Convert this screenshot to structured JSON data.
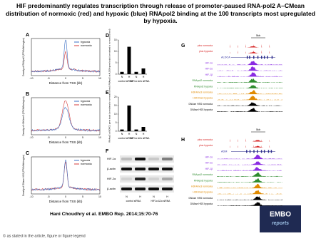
{
  "title": "HIF predominantly regulates transcription through release of promoter-paused RNA-pol2 A–CMean distribution of normoxic (red) and hypoxic (blue) RNApol2 binding at the 100 transcripts most upregulated by hypoxia.",
  "profile_panels": [
    {
      "letter": "A",
      "y_label": "Density of RNApol2 (FPKM/kb/region)",
      "x_label": "Distance from TSS (kb)",
      "x_ticks": [
        "-10",
        "-5",
        "0",
        "5",
        "10"
      ],
      "legend": [
        "hypoxia",
        "normoxia"
      ]
    },
    {
      "letter": "B",
      "y_label": "Density of H3K4me3 (FPKM/kb/region)",
      "x_label": "Distance from TSS (kb)",
      "x_ticks": [
        "-10",
        "-5",
        "0",
        "5",
        "10"
      ],
      "legend": [
        "hypoxia",
        "normoxia"
      ]
    },
    {
      "letter": "C",
      "y_label": "Density of DNase HSS (FPKM/kb/region)",
      "x_label": "Distance from TSS (kb)",
      "x_ticks": [
        "-10",
        "-5",
        "0",
        "5",
        "10"
      ],
      "legend": [
        "hypoxia",
        "normoxia"
      ]
    }
  ],
  "legend_colors": [
    "#3b6fc4",
    "#d43b3b"
  ],
  "bar_panels": [
    {
      "letter": "D",
      "y_label": "RNApol2 at ALDOA gene body (normalised to normoxic control)",
      "categories": [
        "N",
        "H",
        "N",
        "H"
      ],
      "groups": [
        "control siRNA",
        "HIF1α &2α siRNA"
      ],
      "values": [
        1,
        12,
        1,
        2.5
      ],
      "ylim": [
        0,
        15
      ],
      "yticks": [
        0,
        5,
        10,
        15
      ],
      "color": "#000000"
    },
    {
      "letter": "E",
      "y_label": "RNApol2 at NDRG1 gene body (normalised to normoxic control)",
      "categories": [
        "N",
        "H",
        "N",
        "H"
      ],
      "groups": [
        "control siRNA",
        "HIF1α &2α siRNA"
      ],
      "values": [
        1,
        15,
        1,
        2.5
      ],
      "ylim": [
        0,
        20
      ],
      "yticks": [
        0,
        5,
        10,
        15,
        20
      ],
      "color": "#000000"
    }
  ],
  "blot_panel": {
    "letter": "F",
    "rows": [
      "HIF-1α",
      "β-actin",
      "HIF-2α",
      "β-actin"
    ],
    "lanes": [
      "N",
      "H",
      "N",
      "H"
    ],
    "groups": [
      "control siRNA",
      "HIF1α &2α siRNA"
    ]
  },
  "track_panels": [
    {
      "letter": "G",
      "scale": "5kb",
      "gene": "ALDOA",
      "tracks": [
        {
          "label": "plus normoxia",
          "color": "#d62020"
        },
        {
          "label": "plus hypoxia",
          "color": "#d62020"
        },
        {
          "label": "HIF-1α",
          "color": "#8a2be2"
        },
        {
          "label": "HIF-2α",
          "color": "#8a2be2"
        },
        {
          "label": "HIF-1β",
          "color": "#8a2be2"
        },
        {
          "label": "RNApol2 normoxia",
          "color": "#2e8b2e"
        },
        {
          "label": "RNApol2 hypoxia",
          "color": "#2e8b2e"
        },
        {
          "label": "H3K4me3 normoxia",
          "color": "#e08a00"
        },
        {
          "label": "H3K4me3 hypoxia",
          "color": "#e08a00"
        },
        {
          "label": "DNAse HSS normoxia",
          "color": "#000000"
        },
        {
          "label": "DNAse HSS hypoxia",
          "color": "#000000"
        }
      ]
    },
    {
      "letter": "H",
      "scale": "5kb",
      "gene": "ADM",
      "tracks": [
        {
          "label": "plus normoxia",
          "color": "#d62020"
        },
        {
          "label": "plus hypoxia",
          "color": "#d62020"
        },
        {
          "label": "HIF-1α",
          "color": "#8a2be2"
        },
        {
          "label": "HIF-2α",
          "color": "#8a2be2"
        },
        {
          "label": "HIF-1β",
          "color": "#8a2be2"
        },
        {
          "label": "RNApol2 normoxia",
          "color": "#2e8b2e"
        },
        {
          "label": "RNApol2 hypoxia",
          "color": "#2e8b2e"
        },
        {
          "label": "H3K4me3 normoxia",
          "color": "#e08a00"
        },
        {
          "label": "H3K4me3 hypoxia",
          "color": "#e08a00"
        },
        {
          "label": "DNAse HSS normoxia",
          "color": "#000000"
        },
        {
          "label": "DNAse HSS hypoxia",
          "color": "#000000"
        }
      ]
    }
  ],
  "citation": "Hani Choudhry et al. EMBO Rep. 2014;15:70-76",
  "logo": [
    "EMBO",
    "reports"
  ],
  "footer": "© as stated in the article, figure or figure legend"
}
